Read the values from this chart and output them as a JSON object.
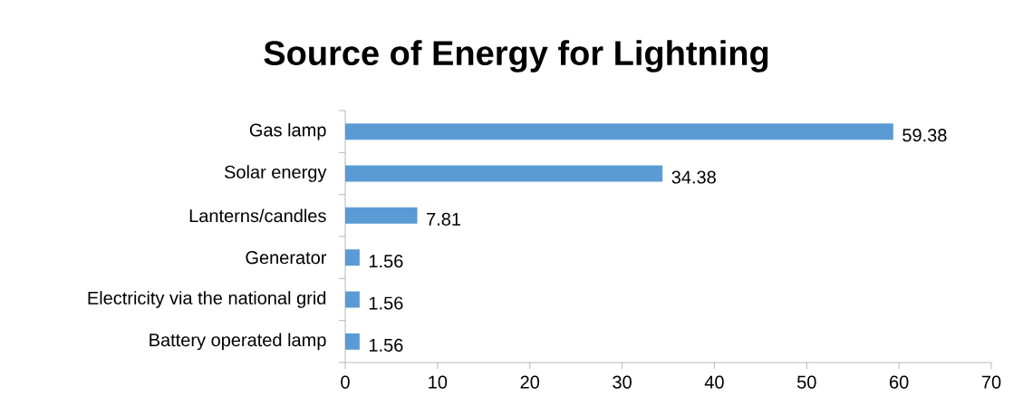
{
  "chart_data": {
    "type": "bar",
    "orientation": "horizontal",
    "title": "Source of Energy for Lightning",
    "categories": [
      "Gas lamp",
      "Solar energy",
      "Lanterns/candles",
      "Generator",
      "Electricity via the national grid",
      "Battery operated lamp"
    ],
    "values": [
      59.38,
      34.38,
      7.81,
      1.56,
      1.56,
      1.56
    ],
    "color": "#5b9bd5",
    "xlim": [
      0,
      70
    ],
    "xticks": [
      0,
      10,
      20,
      30,
      40,
      50,
      60,
      70
    ],
    "data_labels": true
  }
}
